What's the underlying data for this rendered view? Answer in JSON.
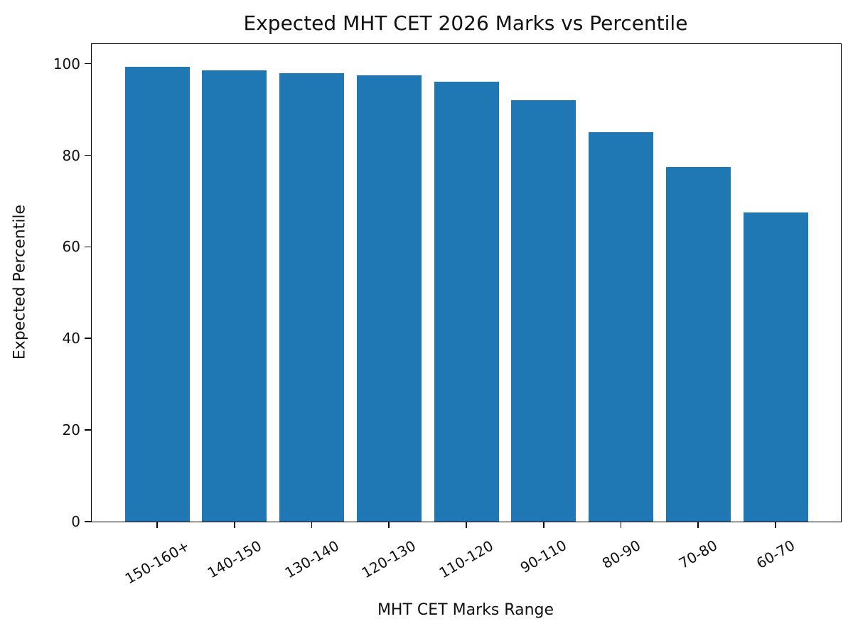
{
  "chart_data": {
    "type": "bar",
    "title": "Expected MHT CET 2026 Marks vs Percentile",
    "xlabel": "MHT CET Marks Range",
    "ylabel": "Expected Percentile",
    "categories": [
      "150-160+",
      "140-150",
      "130-140",
      "120-130",
      "110-120",
      "90-110",
      "80-90",
      "70-80",
      "60-70"
    ],
    "values": [
      99.3,
      98.6,
      98.0,
      97.5,
      96.0,
      92.0,
      85.0,
      77.5,
      67.5
    ],
    "ylim": [
      0,
      104.3
    ],
    "yticks": [
      0,
      20,
      40,
      60,
      80,
      100
    ],
    "x_tick_rotation_deg": 30,
    "grid": false,
    "legend": "none",
    "bar_color": "#1f77b4",
    "spine_color": "#000000",
    "text_color": "#111111"
  }
}
